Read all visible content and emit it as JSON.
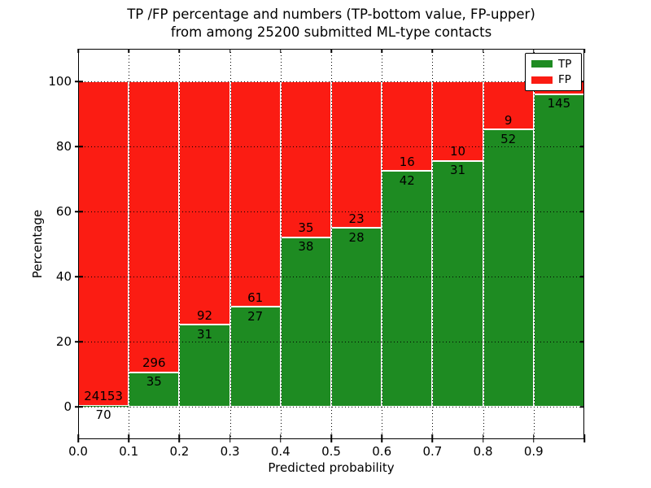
{
  "title": {
    "line1": "TP /FP percentage and numbers (TP-bottom value, FP-upper)",
    "line2": "from among 25200 submitted ML-type contacts"
  },
  "axes": {
    "xlabel": "Predicted probability",
    "ylabel": "Percentage",
    "xtick_labels": [
      "0.0",
      "0.1",
      "0.2",
      "0.3",
      "0.4",
      "0.5",
      "0.6",
      "0.7",
      "0.8",
      "0.9"
    ],
    "ytick_labels": [
      "0",
      "20",
      "40",
      "60",
      "80",
      "100"
    ],
    "ytick_values": [
      0,
      20,
      40,
      60,
      80,
      100
    ],
    "ylim": [
      -10,
      110
    ],
    "xlim": [
      0.0,
      1.0
    ]
  },
  "legend": {
    "items": [
      {
        "label": "TP",
        "color": "#1e8b22"
      },
      {
        "label": "FP",
        "color": "#fb1c13"
      }
    ],
    "position": "upper right"
  },
  "colors": {
    "tp": "#1e8b22",
    "fp": "#fb1c13",
    "grid": "#000000",
    "text": "#000000",
    "background": "#ffffff",
    "bar_edge": "#ffffff"
  },
  "chart_data": {
    "type": "bar",
    "stacked": true,
    "normalized": "each bin stacks to 100%",
    "title": "TP /FP percentage and numbers (TP-bottom value, FP-upper) from among 25200 submitted ML-type contacts",
    "xlabel": "Predicted probability",
    "ylabel": "Percentage",
    "total_submitted": 25200,
    "categories": [
      "0.0-0.1",
      "0.1-0.2",
      "0.2-0.3",
      "0.3-0.4",
      "0.4-0.5",
      "0.5-0.6",
      "0.6-0.7",
      "0.7-0.8",
      "0.8-0.9",
      "0.9-1.0"
    ],
    "series": [
      {
        "name": "TP",
        "counts": [
          70,
          35,
          31,
          27,
          38,
          28,
          42,
          31,
          52,
          145
        ]
      },
      {
        "name": "FP",
        "counts": [
          24153,
          296,
          92,
          61,
          35,
          23,
          16,
          10,
          9,
          null
        ]
      }
    ],
    "tp_percent": [
      0.29,
      10.57,
      25.2,
      30.68,
      52.05,
      54.9,
      72.41,
      75.61,
      85.25,
      96.03
    ],
    "bar_labels": {
      "tp": [
        "70",
        "35",
        "31",
        "27",
        "38",
        "28",
        "42",
        "31",
        "52",
        "145"
      ],
      "fp": [
        "24153",
        "296",
        "92",
        "61",
        "35",
        "23",
        "16",
        "10",
        "9",
        ""
      ]
    },
    "ylim": [
      -10,
      110
    ],
    "grid": "dotted",
    "legend_position": "upper right"
  }
}
